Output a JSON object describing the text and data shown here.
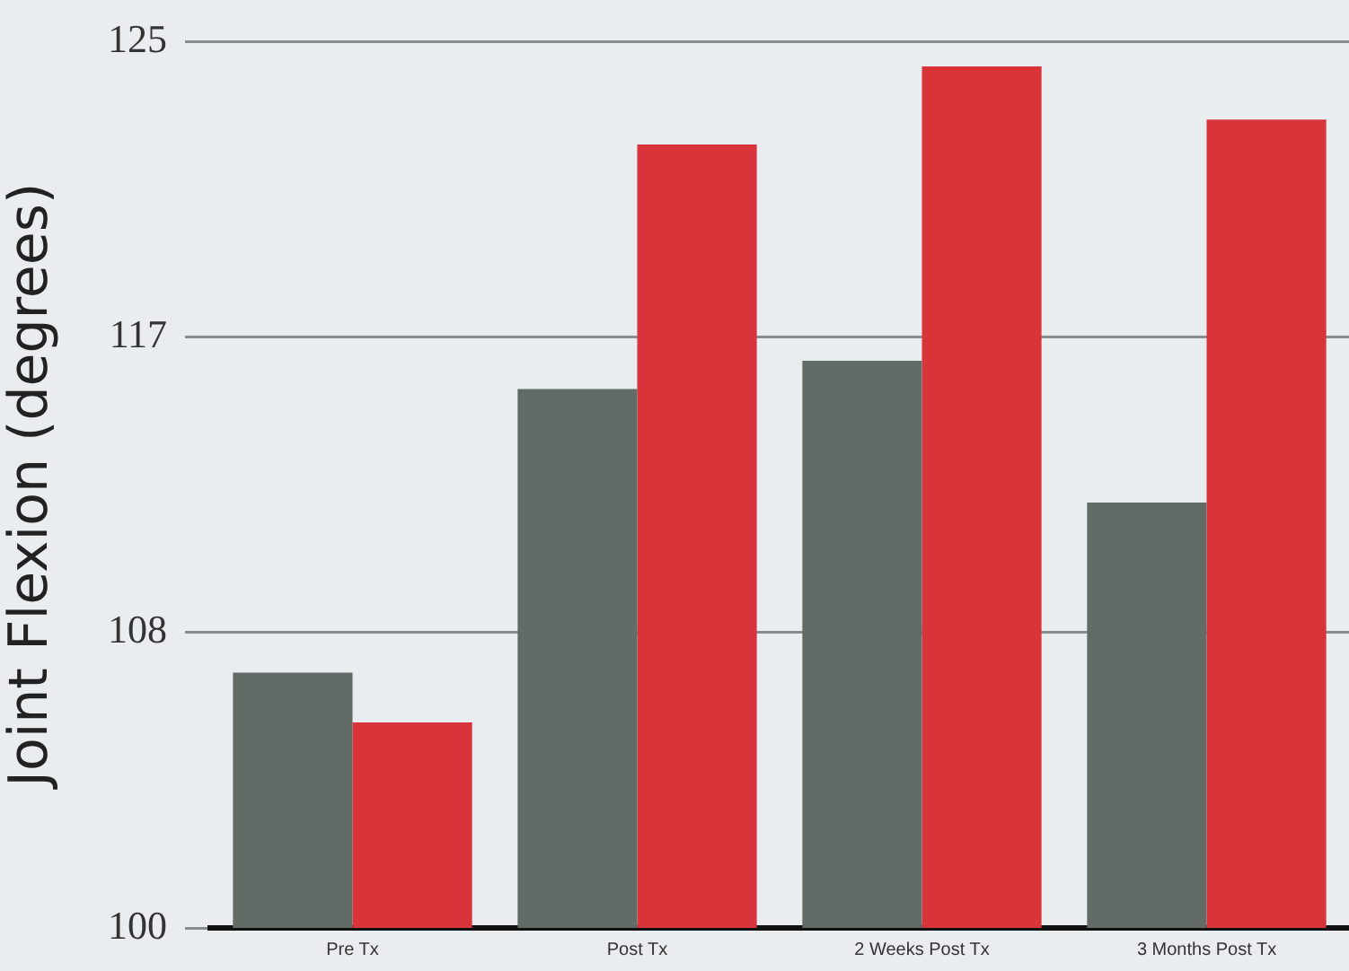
{
  "chart_data": {
    "type": "bar",
    "ylabel": "Joint Flexion (degrees)",
    "categories": [
      "Pre Tx",
      "Post Tx",
      "2 Weeks Post Tx",
      "3 Months Post Tx"
    ],
    "series": [
      {
        "color": "#626b66",
        "values": [
          107.2,
          115.2,
          116.0,
          112.0
        ]
      },
      {
        "color": "#d8343a",
        "values": [
          105.8,
          122.1,
          124.3,
          122.8
        ]
      }
    ],
    "ylim": [
      100,
      125
    ],
    "yticks": [
      100,
      {
        "value": 108.33,
        "label": "108"
      },
      {
        "value": 116.67,
        "label": "117"
      },
      125
    ],
    "grid": "y",
    "legend": false
  }
}
